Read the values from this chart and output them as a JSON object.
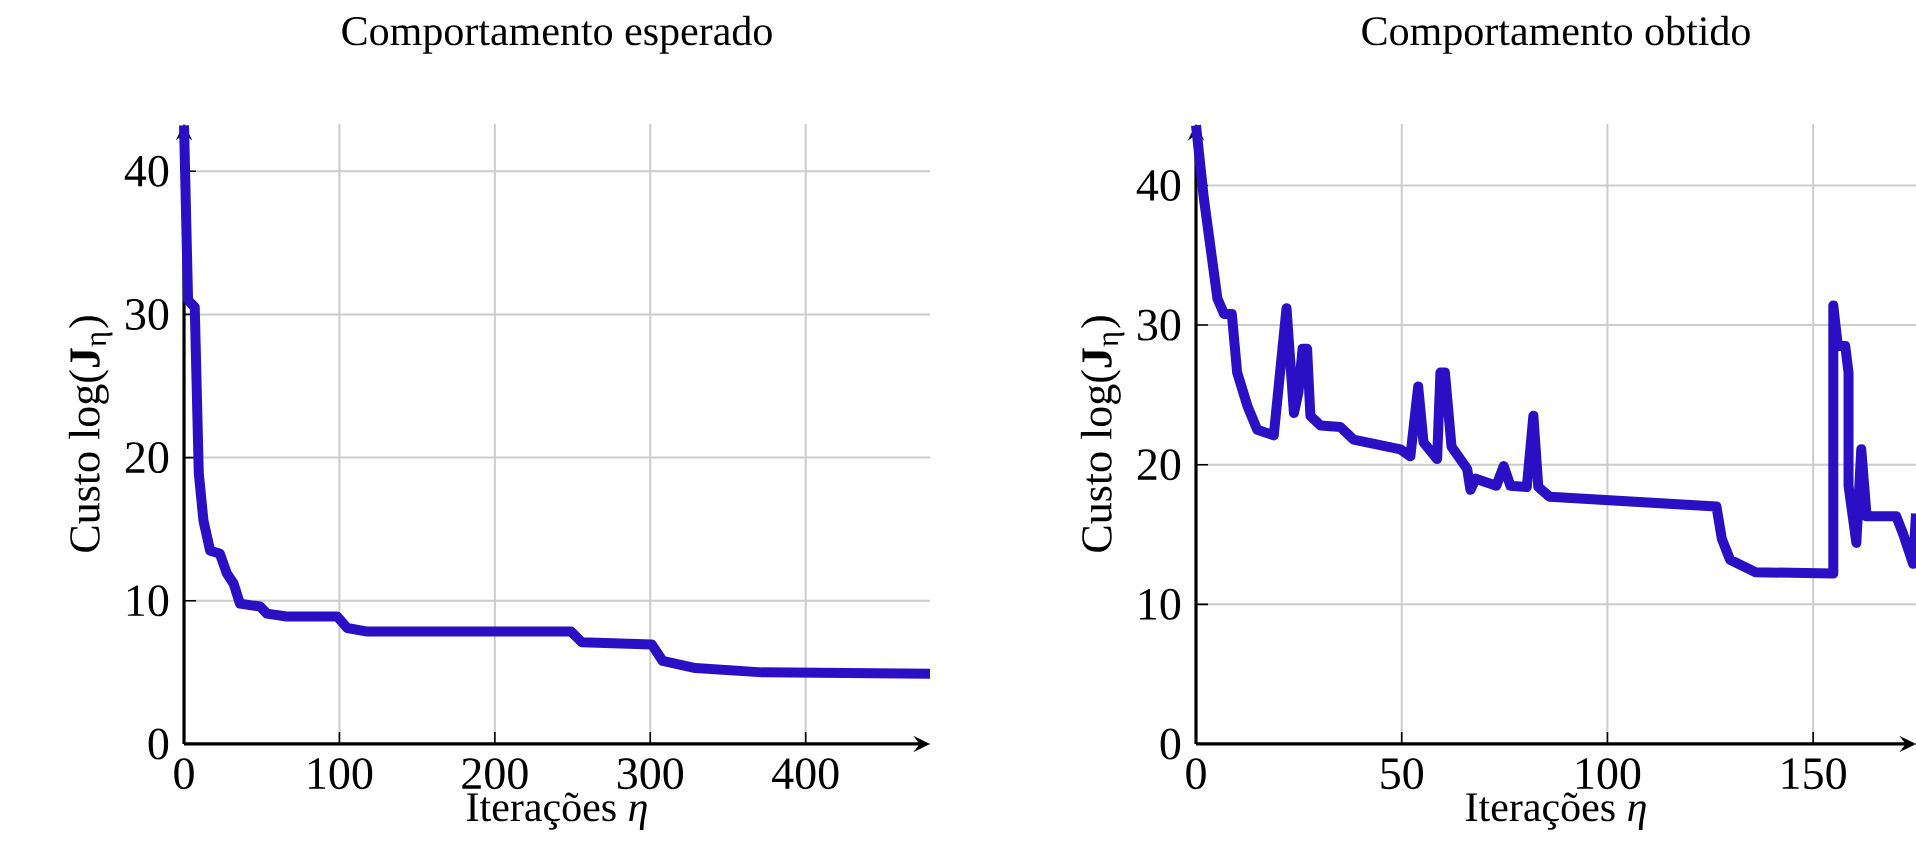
{
  "chart_data": [
    {
      "type": "line",
      "title": "Comportamento esperado",
      "xlabel": "Iterações *η*",
      "ylabel": "Custo log(**J**$_{η}$)",
      "xlim": [
        0,
        480
      ],
      "ylim": [
        0,
        43.3
      ],
      "xticks": [
        0,
        100,
        200,
        300,
        400
      ],
      "yticks": [
        0,
        10,
        20,
        30,
        40
      ],
      "grid": true,
      "marker": "none",
      "series": [
        {
          "color": "#2a0fc4",
          "x": [
            0,
            2.6,
            6.9,
            9.5,
            12.5,
            16.8,
            23,
            27.6,
            31.9,
            36,
            49,
            53.4,
            66,
            98.6,
            105,
            118,
            249,
            256,
            301,
            308,
            329,
            372,
            480
          ],
          "values": [
            43.2,
            31,
            30.5,
            18.9,
            15.6,
            13.5,
            13.3,
            11.9,
            11.2,
            9.8,
            9.6,
            9.1,
            8.9,
            8.9,
            8.1,
            7.85,
            7.85,
            7.1,
            6.95,
            5.8,
            5.3,
            5.0,
            4.9
          ]
        }
      ]
    },
    {
      "type": "line",
      "title": "Comportamento obtido",
      "xlabel": "Iterações *η*",
      "ylabel": "Custo log(**J**$_{η}$)",
      "xlim": [
        0,
        175
      ],
      "ylim": [
        0,
        44.4
      ],
      "xticks": [
        0,
        50,
        100,
        150
      ],
      "yticks": [
        0,
        10,
        20,
        30,
        40
      ],
      "grid": true,
      "marker": "none",
      "series": [
        {
          "color": "#2a0fc4",
          "x": [
            0,
            1.9,
            5.2,
            6.8,
            8.7,
            10,
            12.5,
            14.9,
            18.9,
            20.6,
            22,
            23.8,
            24.9,
            25.9,
            27,
            27.8,
            30.3,
            35.1,
            38.3,
            49.7,
            52.1,
            54,
            55.3,
            58.6,
            59.4,
            60.5,
            62.1,
            65.9,
            66.7,
            68,
            73,
            74.8,
            76.4,
            80.4,
            82,
            83.2,
            86,
            126.5,
            127.8,
            129.8,
            136,
            154.9,
            154.9,
            156,
            157.8,
            158.6,
            158.6,
            160.5,
            161.7,
            163,
            170.2,
            171.8,
            174.3,
            175
          ],
          "values": [
            44.3,
            39.1,
            31.9,
            30.8,
            30.8,
            26.6,
            24.2,
            22.5,
            22.1,
            27.1,
            31.2,
            23.7,
            25.2,
            28.3,
            28.3,
            23.5,
            22.8,
            22.7,
            21.8,
            21.1,
            20.6,
            25.6,
            21.6,
            20.4,
            26.6,
            26.6,
            21.3,
            19.7,
            18.2,
            19,
            18.5,
            19.9,
            18.5,
            18.4,
            23.5,
            18.4,
            17.7,
            17,
            14.7,
            13.2,
            12.3,
            12.2,
            31.4,
            28.5,
            28.5,
            26.6,
            18.5,
            14.4,
            21.1,
            16.3,
            16.3,
            15.1,
            12.9,
            16.5
          ]
        }
      ]
    }
  ]
}
